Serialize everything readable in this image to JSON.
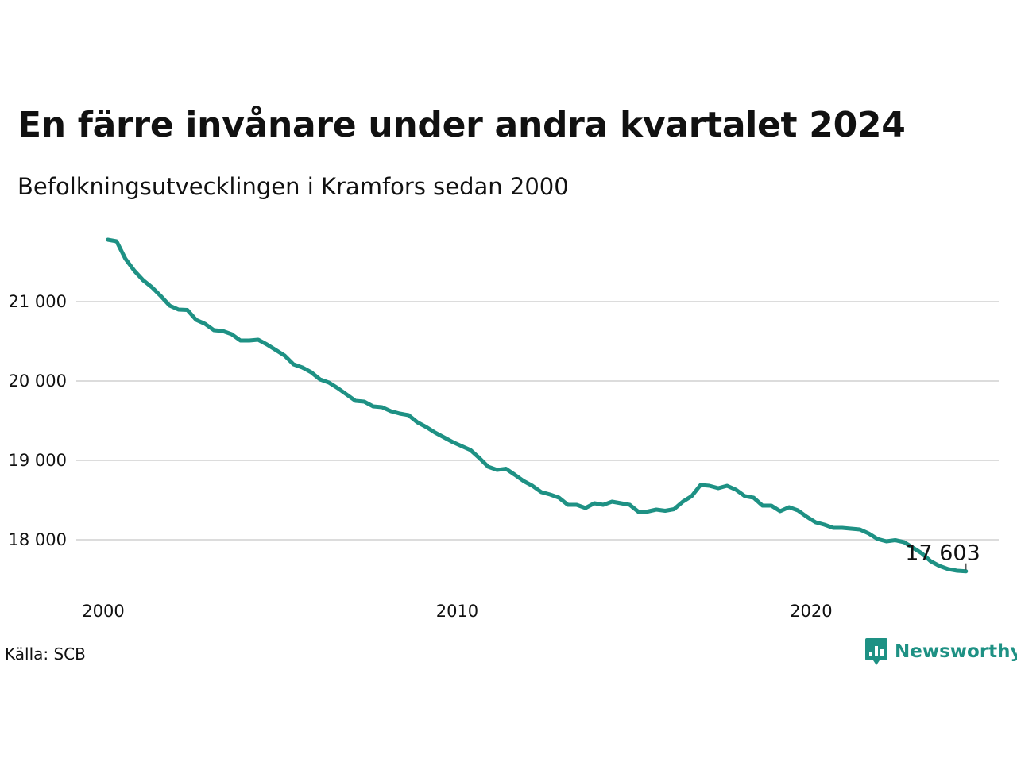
{
  "title": "En färre invånare under andra kvartalet 2024",
  "subtitle": "Befolkningsutvecklingen i Kramfors sedan 2000",
  "source": "Källa: SCB",
  "brand": {
    "name": "Newsworthy",
    "icon": "newsworthy-logo-icon",
    "color": "#1e9184"
  },
  "chart_data": {
    "type": "line",
    "color": "#1e9184",
    "grid": "horizontal",
    "xlim": [
      2000,
      2025.3
    ],
    "ylim": [
      17450,
      21900
    ],
    "x_ticks": [
      2000,
      2010,
      2020
    ],
    "x_tick_labels": [
      "2000",
      "2010",
      "2020"
    ],
    "y_ticks": [
      18000,
      19000,
      20000,
      21000
    ],
    "y_tick_labels": [
      "18 000",
      "19 000",
      "20 000",
      "21 000"
    ],
    "last_label": "17 603",
    "series": [
      {
        "x": [
          2000.125,
          2000.375,
          2000.625,
          2000.875,
          2001.125,
          2001.375,
          2001.625,
          2001.875,
          2002.125,
          2002.375,
          2002.625,
          2002.875,
          2003.125,
          2003.375,
          2003.625,
          2003.875,
          2004.125,
          2004.375,
          2004.625,
          2004.875,
          2005.125,
          2005.375,
          2005.625,
          2005.875,
          2006.125,
          2006.375,
          2006.625,
          2006.875,
          2007.125,
          2007.375,
          2007.625,
          2007.875,
          2008.125,
          2008.375,
          2008.625,
          2008.875,
          2009.125,
          2009.375,
          2009.625,
          2009.875,
          2010.125,
          2010.375,
          2010.625,
          2010.875,
          2011.125,
          2011.375,
          2011.625,
          2011.875,
          2012.125,
          2012.375,
          2012.625,
          2012.875,
          2013.125,
          2013.375,
          2013.625,
          2013.875,
          2014.125,
          2014.375,
          2014.625,
          2014.875,
          2015.125,
          2015.375,
          2015.625,
          2015.875,
          2016.125,
          2016.375,
          2016.625,
          2016.875,
          2017.125,
          2017.375,
          2017.625,
          2017.875,
          2018.125,
          2018.375,
          2018.625,
          2018.875,
          2019.125,
          2019.375,
          2019.625,
          2019.875,
          2020.125,
          2020.375,
          2020.625,
          2020.875,
          2021.125,
          2021.375,
          2021.625,
          2021.875,
          2022.125,
          2022.375,
          2022.625,
          2022.875,
          2023.125,
          2023.375,
          2023.625,
          2023.875,
          2024.125,
          2024.375
        ],
        "y": [
          21780,
          21760,
          21540,
          21390,
          21270,
          21180,
          21070,
          20950,
          20900,
          20895,
          20770,
          20720,
          20640,
          20630,
          20590,
          20510,
          20510,
          20520,
          20460,
          20390,
          20320,
          20210,
          20170,
          20110,
          20020,
          19980,
          19910,
          19830,
          19750,
          19740,
          19680,
          19670,
          19620,
          19590,
          19570,
          19480,
          19420,
          19350,
          19290,
          19230,
          19180,
          19130,
          19030,
          18920,
          18880,
          18895,
          18820,
          18740,
          18680,
          18600,
          18570,
          18530,
          18440,
          18440,
          18400,
          18460,
          18440,
          18480,
          18460,
          18440,
          18350,
          18355,
          18380,
          18365,
          18385,
          18480,
          18550,
          18690,
          18680,
          18650,
          18680,
          18630,
          18550,
          18530,
          18430,
          18430,
          18360,
          18410,
          18370,
          18290,
          18220,
          18190,
          18150,
          18150,
          18140,
          18130,
          18080,
          18010,
          17980,
          17995,
          17970,
          17900,
          17830,
          17730,
          17670,
          17630,
          17610,
          17603
        ]
      }
    ]
  }
}
